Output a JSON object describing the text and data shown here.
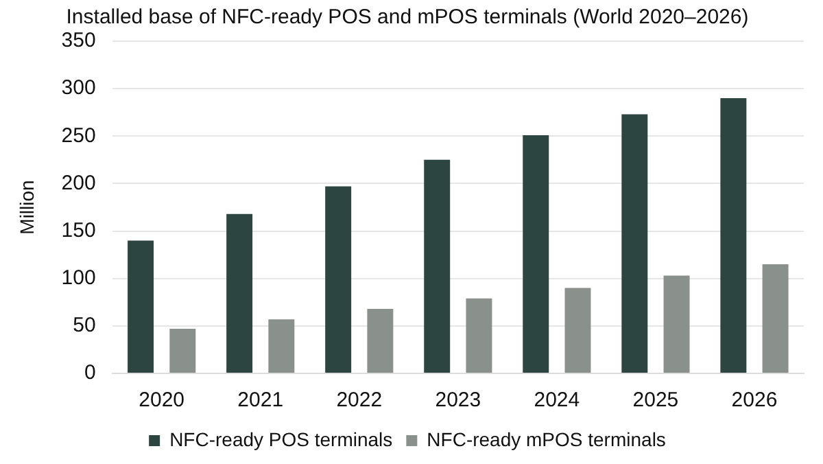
{
  "chart_data": {
    "type": "bar",
    "title": "Installed base of NFC-ready POS and mPOS terminals (World 2020–2026)",
    "ylabel": "Million",
    "categories": [
      "2020",
      "2021",
      "2022",
      "2023",
      "2024",
      "2025",
      "2026"
    ],
    "series": [
      {
        "name": "NFC-ready POS terminals",
        "color": "#2d4540",
        "values": [
          140,
          168,
          197,
          225,
          251,
          273,
          290
        ]
      },
      {
        "name": "NFC-ready mPOS terminals",
        "color": "#8a918c",
        "values": [
          47,
          57,
          68,
          79,
          90,
          103,
          115
        ]
      }
    ],
    "ylim": [
      0,
      350
    ],
    "yticks": [
      0,
      50,
      100,
      150,
      200,
      250,
      300,
      350
    ],
    "grid": "y",
    "legend": "bottom"
  }
}
